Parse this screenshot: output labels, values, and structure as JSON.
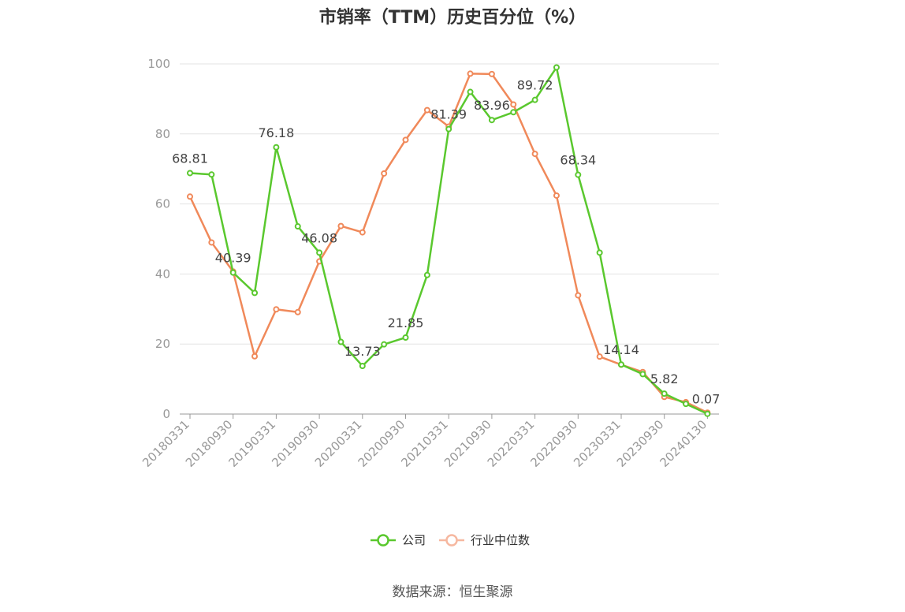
{
  "title": "市销率（TTM）历史百分位（%）",
  "source": "数据来源：恒生聚源",
  "chart_data": {
    "type": "line",
    "title": "市销率（TTM）历史百分位（%）",
    "xlabel": "",
    "ylabel": "",
    "ylim": [
      0,
      100
    ],
    "yticks": [
      0,
      20,
      40,
      60,
      80,
      100
    ],
    "grid": true,
    "legend_position": "bottom",
    "x": [
      "20180331",
      "20180630",
      "20180930",
      "20181231",
      "20190331",
      "20190630",
      "20190930",
      "20191231",
      "20200331",
      "20200630",
      "20200930",
      "20201231",
      "20210331",
      "20210630",
      "20210930",
      "20211231",
      "20220331",
      "20220630",
      "20220930",
      "20221231",
      "20230331",
      "20230630",
      "20230930",
      "20231231",
      "20240130"
    ],
    "x_tick_labels": [
      "20180331",
      "20180930",
      "20190331",
      "20190930",
      "20200331",
      "20200930",
      "20210331",
      "20210930",
      "20220331",
      "20220930",
      "20230331",
      "20230930",
      "20240130"
    ],
    "series": [
      {
        "name": "公司",
        "color": "#5ac82e",
        "values": [
          68.81,
          68.4,
          40.39,
          34.6,
          76.18,
          53.6,
          46.08,
          20.6,
          13.73,
          19.9,
          21.85,
          39.7,
          81.39,
          92.0,
          83.96,
          86.2,
          89.72,
          99.0,
          68.34,
          46.1,
          14.14,
          11.4,
          5.82,
          2.9,
          0.07
        ],
        "labeled_points": [
          {
            "index": 0,
            "text": "68.81"
          },
          {
            "index": 2,
            "text": "40.39"
          },
          {
            "index": 4,
            "text": "76.18"
          },
          {
            "index": 6,
            "text": "46.08"
          },
          {
            "index": 8,
            "text": "13.73"
          },
          {
            "index": 10,
            "text": "21.85"
          },
          {
            "index": 12,
            "text": "81.39"
          },
          {
            "index": 14,
            "text": "83.96"
          },
          {
            "index": 16,
            "text": "89.72"
          },
          {
            "index": 18,
            "text": "68.34"
          },
          {
            "index": 20,
            "text": "14.14"
          },
          {
            "index": 22,
            "text": "5.82"
          },
          {
            "index": 24,
            "text": "0.07"
          }
        ]
      },
      {
        "name": "行业中位数",
        "color": "#f0895a",
        "values": [
          62.1,
          49.0,
          40.7,
          16.5,
          29.9,
          29.1,
          43.6,
          53.7,
          51.9,
          68.7,
          78.3,
          86.8,
          82.1,
          97.2,
          97.1,
          88.4,
          74.3,
          62.4,
          33.9,
          16.4,
          14.1,
          12.0,
          4.9,
          3.4,
          0.4
        ]
      }
    ]
  }
}
